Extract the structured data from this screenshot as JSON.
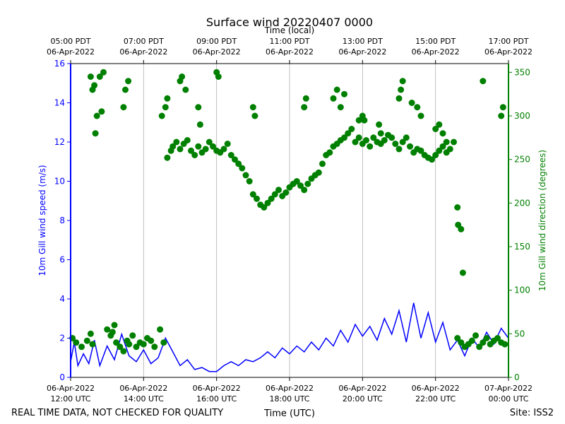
{
  "footer": {
    "disclaimer": "REAL TIME DATA, NOT CHECKED FOR QUALITY",
    "site": "Site: ISS2"
  },
  "chart_data": {
    "type": "line+scatter",
    "title": "Surface wind 20220407 0000",
    "xlabel_bottom": "Time (UTC)",
    "xlabel_top": "Time (local)",
    "ylabel_left": "10m Gill wind speed (m/s)",
    "ylabel_right": "10m Gill wind direction (degrees)",
    "x_unit": "hours since 06-Apr-2022 12:00 UTC",
    "xlim": [
      0,
      12
    ],
    "ylim_left": [
      0,
      16
    ],
    "ylim_right": [
      0,
      360
    ],
    "grid": "vertical",
    "colors": {
      "speed": "#0000ff",
      "direction": "#008000"
    },
    "yticks_left": [
      0,
      2,
      4,
      6,
      8,
      10,
      12,
      14,
      16
    ],
    "yticks_right": [
      0,
      50,
      100,
      150,
      200,
      250,
      300,
      350
    ],
    "xticks_bottom": [
      {
        "x": 0,
        "date": "06-Apr-2022",
        "time": "12:00 UTC"
      },
      {
        "x": 2,
        "date": "06-Apr-2022",
        "time": "14:00 UTC"
      },
      {
        "x": 4,
        "date": "06-Apr-2022",
        "time": "16:00 UTC"
      },
      {
        "x": 6,
        "date": "06-Apr-2022",
        "time": "18:00 UTC"
      },
      {
        "x": 8,
        "date": "06-Apr-2022",
        "time": "20:00 UTC"
      },
      {
        "x": 10,
        "date": "06-Apr-2022",
        "time": "22:00 UTC"
      },
      {
        "x": 12,
        "date": "07-Apr-2022",
        "time": "00:00 UTC"
      }
    ],
    "xticks_top": [
      {
        "x": 0,
        "time": "05:00 PDT",
        "date": "06-Apr-2022"
      },
      {
        "x": 2,
        "time": "07:00 PDT",
        "date": "06-Apr-2022"
      },
      {
        "x": 4,
        "time": "09:00 PDT",
        "date": "06-Apr-2022"
      },
      {
        "x": 6,
        "time": "11:00 PDT",
        "date": "06-Apr-2022"
      },
      {
        "x": 8,
        "time": "13:00 PDT",
        "date": "06-Apr-2022"
      },
      {
        "x": 10,
        "time": "15:00 PDT",
        "date": "06-Apr-2022"
      },
      {
        "x": 12,
        "time": "17:00 PDT",
        "date": "06-Apr-2022"
      }
    ],
    "series": [
      {
        "name": "wind speed",
        "axis": "left",
        "style": "line",
        "x": [
          0,
          0.1,
          0.2,
          0.35,
          0.5,
          0.65,
          0.8,
          1.0,
          1.2,
          1.4,
          1.6,
          1.8,
          2.0,
          2.2,
          2.4,
          2.6,
          2.8,
          3.0,
          3.2,
          3.4,
          3.6,
          3.8,
          4.0,
          4.2,
          4.4,
          4.6,
          4.8,
          5.0,
          5.2,
          5.4,
          5.6,
          5.8,
          6.0,
          6.2,
          6.4,
          6.6,
          6.8,
          7.0,
          7.2,
          7.4,
          7.6,
          7.8,
          8.0,
          8.2,
          8.4,
          8.6,
          8.8,
          9.0,
          9.2,
          9.4,
          9.6,
          9.8,
          10.0,
          10.2,
          10.4,
          10.6,
          10.8,
          11.0,
          11.2,
          11.4,
          11.6,
          11.8,
          12.0
        ],
        "values": [
          0.8,
          1.8,
          0.6,
          1.2,
          0.7,
          1.9,
          0.6,
          1.6,
          0.9,
          2.2,
          1.1,
          0.8,
          1.4,
          0.7,
          1.0,
          2.0,
          1.3,
          0.6,
          0.9,
          0.4,
          0.5,
          0.3,
          0.3,
          0.6,
          0.8,
          0.6,
          0.9,
          0.8,
          1.0,
          1.3,
          1.0,
          1.5,
          1.2,
          1.6,
          1.3,
          1.8,
          1.4,
          2.0,
          1.6,
          2.4,
          1.8,
          2.7,
          2.1,
          2.6,
          1.9,
          3.0,
          2.2,
          3.4,
          1.8,
          3.8,
          2.0,
          3.3,
          1.8,
          2.8,
          1.4,
          1.9,
          1.1,
          2.0,
          1.5,
          2.3,
          1.7,
          2.5,
          2.0
        ]
      },
      {
        "name": "wind direction",
        "axis": "right",
        "style": "scatter",
        "x": [
          0.05,
          0.15,
          0.3,
          0.45,
          0.55,
          0.6,
          0.68,
          0.72,
          0.8,
          0.9,
          1.0,
          1.1,
          1.15,
          1.2,
          1.25,
          1.35,
          1.45,
          1.55,
          1.6,
          1.7,
          1.8,
          1.9,
          2.0,
          2.1,
          2.2,
          2.3,
          2.45,
          2.55,
          2.65,
          2.75,
          2.8,
          2.9,
          3.0,
          3.1,
          3.2,
          3.3,
          3.4,
          3.5,
          3.6,
          3.7,
          3.8,
          3.9,
          4.0,
          4.1,
          4.2,
          4.3,
          4.4,
          4.5,
          4.6,
          4.7,
          4.8,
          4.9,
          5.0,
          5.1,
          5.2,
          5.3,
          5.4,
          5.5,
          5.6,
          5.7,
          5.8,
          5.9,
          6.0,
          6.1,
          6.2,
          6.3,
          6.4,
          6.5,
          6.6,
          6.7,
          6.8,
          6.9,
          7.0,
          7.1,
          7.2,
          7.3,
          7.4,
          7.5,
          7.6,
          7.7,
          7.8,
          7.9,
          8.0,
          8.1,
          8.2,
          8.3,
          8.4,
          8.5,
          8.6,
          8.7,
          8.8,
          8.9,
          9.0,
          9.1,
          9.2,
          9.3,
          9.4,
          9.5,
          9.6,
          9.7,
          9.8,
          9.9,
          10.0,
          10.1,
          10.2,
          10.3,
          10.4,
          10.5,
          10.6,
          10.7,
          10.8,
          10.9,
          11.0,
          11.1,
          11.2,
          11.3,
          11.4,
          11.5,
          11.6,
          11.7,
          11.8,
          11.9,
          0.55,
          0.6,
          0.65,
          0.85,
          1.45,
          1.5,
          1.58,
          2.5,
          2.6,
          2.65,
          3.0,
          3.05,
          3.15,
          3.5,
          3.55,
          4.0,
          4.05,
          5.0,
          5.05,
          6.4,
          6.45,
          7.2,
          7.3,
          7.4,
          7.5,
          7.9,
          8.0,
          8.05,
          8.45,
          8.5,
          9.0,
          9.05,
          9.1,
          9.35,
          9.5,
          9.6,
          10.0,
          10.1,
          10.2,
          10.3,
          10.6,
          10.62,
          10.7,
          10.75,
          11.3,
          11.8,
          11.85
        ],
        "values": [
          45,
          40,
          35,
          42,
          50,
          38,
          280,
          300,
          345,
          350,
          55,
          48,
          52,
          60,
          40,
          35,
          30,
          42,
          38,
          48,
          35,
          40,
          38,
          45,
          42,
          35,
          55,
          40,
          252,
          260,
          265,
          270,
          262,
          268,
          272,
          260,
          255,
          265,
          258,
          262,
          270,
          265,
          260,
          258,
          262,
          268,
          255,
          250,
          245,
          240,
          232,
          225,
          210,
          205,
          198,
          195,
          200,
          205,
          210,
          215,
          208,
          212,
          218,
          222,
          225,
          220,
          215,
          222,
          228,
          232,
          235,
          245,
          255,
          258,
          265,
          268,
          272,
          275,
          280,
          285,
          270,
          275,
          268,
          272,
          265,
          275,
          270,
          268,
          272,
          278,
          275,
          268,
          262,
          270,
          275,
          265,
          258,
          262,
          260,
          255,
          252,
          250,
          255,
          260,
          265,
          258,
          262,
          270,
          45,
          40,
          35,
          38,
          42,
          48,
          35,
          40,
          45,
          38,
          42,
          45,
          40,
          38,
          345,
          330,
          335,
          305,
          310,
          330,
          340,
          300,
          310,
          320,
          340,
          345,
          330,
          310,
          290,
          350,
          345,
          310,
          300,
          310,
          320,
          320,
          330,
          310,
          325,
          295,
          300,
          295,
          290,
          280,
          320,
          330,
          340,
          315,
          310,
          300,
          285,
          290,
          280,
          270,
          195,
          175,
          170,
          120,
          340,
          300,
          310
        ]
      }
    ]
  }
}
